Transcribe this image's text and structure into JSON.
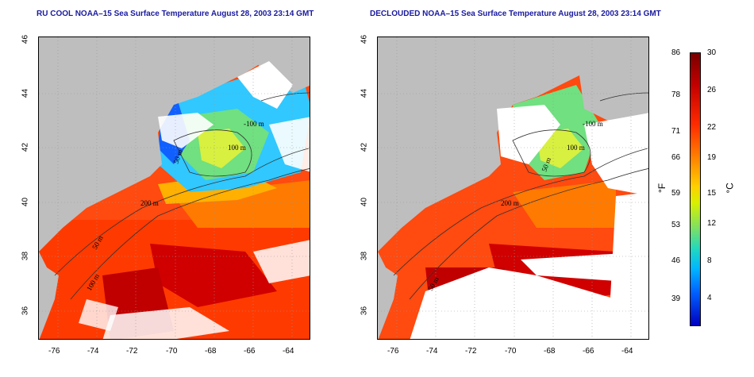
{
  "panels": [
    {
      "title": "RU COOL NOAA–15 Sea Surface Temperature August 28, 2003 23:14 GMT"
    },
    {
      "title": "DECLOUDED NOAA–15 Sea Surface Temperature August 28, 2003 23:14 GMT"
    }
  ],
  "axes": {
    "lon_ticks": [
      "-76",
      "-74",
      "-72",
      "-70",
      "-68",
      "-66",
      "-64"
    ],
    "lat_ticks": [
      "46",
      "44",
      "42",
      "40",
      "38",
      "36"
    ]
  },
  "contours": {
    "left": [
      "-100 m",
      "100 m",
      "50 m",
      "200 m",
      "50 m",
      "100 m"
    ],
    "right": [
      "-100 m",
      "100 m",
      "50 m",
      "200 m",
      "50 m"
    ]
  },
  "colorbar": {
    "fahrenheit_ticks": [
      "86",
      "78",
      "71",
      "66",
      "59",
      "53",
      "46",
      "39"
    ],
    "celsius_ticks": [
      "30",
      "26",
      "22",
      "19",
      "15",
      "12",
      "8",
      "4"
    ],
    "unit_f": "°F",
    "unit_c": "°C"
  },
  "colors": {
    "land": "#bebebe",
    "cloud": "#ffffff",
    "title_text": "#1a1aa0",
    "warm": "#ff3000",
    "hot": "#b00000",
    "cool": "#30c8ff",
    "mid": "#f0e020"
  }
}
